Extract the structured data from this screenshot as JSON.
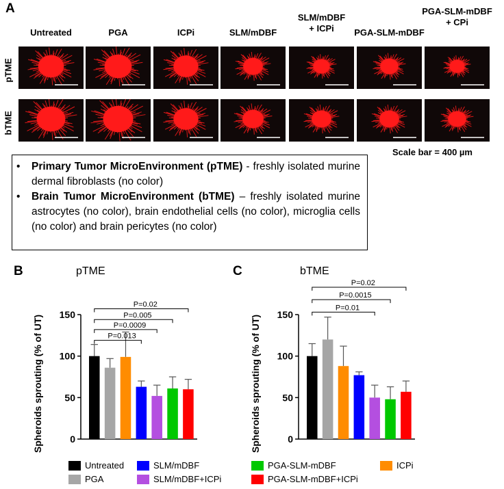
{
  "panel_a": {
    "letter": "A",
    "columns": [
      "Untreated",
      "PGA",
      "ICPi",
      "SLM/mDBF",
      "SLM/mDBF\n+ ICPi",
      "PGA-SLM-mDBF",
      "PGA-SLM-mDBF\n+ CPi"
    ],
    "rows": [
      "pTME",
      "bTME"
    ],
    "spheroid_color": "#ff1a1a",
    "scale_bar_text": "Scale bar = 400 µm"
  },
  "notes": {
    "items": [
      {
        "bold": "Primary Tumor MicroEnvironment (pTME)",
        "rest": " - freshly isolated murine dermal fibroblasts (no color)"
      },
      {
        "bold": "Brain Tumor MicroEnvironment (bTME)",
        "rest": " – freshly isolated murine astrocytes (no color), brain endothelial cells (no color), microglia cells (no color) and brain pericytes (no color)"
      }
    ]
  },
  "chart_data": [
    {
      "panel": "B",
      "type": "bar",
      "title": "pTME",
      "ylabel": "Spheroids sprouting (% of UT)",
      "ylim": [
        0,
        150
      ],
      "yticks": [
        0,
        50,
        100,
        150
      ],
      "categories": [
        "Untreated",
        "PGA",
        "ICPi",
        "SLM/mDBF",
        "SLM/mDBF+ICPi",
        "PGA-SLM-mDBF",
        "PGA-SLM-mDBF+ICPi"
      ],
      "values": [
        100,
        86,
        99,
        63,
        52,
        61,
        60
      ],
      "errors": [
        14,
        11,
        30,
        7,
        13,
        14,
        12
      ],
      "colors": [
        "#000000",
        "#a6a6a6",
        "#ff8c00",
        "#0000ff",
        "#b44fe0",
        "#00c800",
        "#ff0000"
      ],
      "comparisons": [
        {
          "from": 0,
          "to": 3,
          "label": "P=0.013",
          "y": 119
        },
        {
          "from": 0,
          "to": 4,
          "label": "P=0.0009",
          "y": 132
        },
        {
          "from": 0,
          "to": 5,
          "label": "P=0.005",
          "y": 144
        },
        {
          "from": 0,
          "to": 6,
          "label": "P=0.02",
          "y": 157
        }
      ]
    },
    {
      "panel": "C",
      "type": "bar",
      "title": "bTME",
      "ylabel": "Spheroids sprouting (% of UT)",
      "ylim": [
        0,
        150
      ],
      "yticks": [
        0,
        50,
        100,
        150
      ],
      "categories": [
        "Untreated",
        "PGA",
        "ICPi",
        "SLM/mDBF",
        "SLM/mDBF+ICPi",
        "PGA-SLM-mDBF",
        "PGA-SLM-mDBF+ICPi"
      ],
      "values": [
        100,
        120,
        88,
        77,
        50,
        48,
        57
      ],
      "errors": [
        15,
        27,
        24,
        4,
        15,
        15,
        13
      ],
      "colors": [
        "#000000",
        "#a6a6a6",
        "#ff8c00",
        "#0000ff",
        "#b44fe0",
        "#00c800",
        "#ff0000"
      ],
      "comparisons": [
        {
          "from": 0,
          "to": 4,
          "label": "P=0.01",
          "y": 153
        },
        {
          "from": 0,
          "to": 5,
          "label": "P=0.0015",
          "y": 168
        },
        {
          "from": 0,
          "to": 6,
          "label": "P=0.02",
          "y": 183
        }
      ]
    }
  ],
  "legend": [
    {
      "label": "Untreated",
      "color": "#000000"
    },
    {
      "label": "SLM/mDBF",
      "color": "#0000ff"
    },
    {
      "label": "PGA-SLM-mDBF",
      "color": "#00c800"
    },
    {
      "label": "ICPi",
      "color": "#ff8c00"
    },
    {
      "label": "PGA",
      "color": "#a6a6a6"
    },
    {
      "label": "SLM/mDBF+ICPi",
      "color": "#b44fe0"
    },
    {
      "label": "PGA-SLM-mDBF+ICPi",
      "color": "#ff0000"
    }
  ]
}
